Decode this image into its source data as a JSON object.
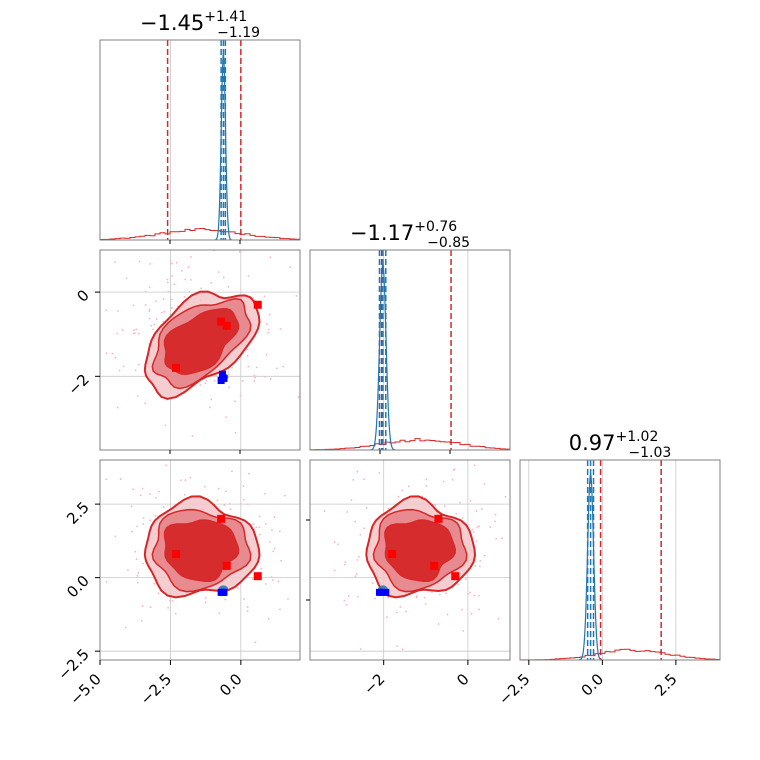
{
  "colors": {
    "primary": "#d62728",
    "secondary": "#1f77b4",
    "scatter_primary": "#f7b6c2",
    "marker_red": "#ff0000",
    "marker_blue": "#0000ff"
  },
  "chart_data": {
    "type": "scatter",
    "style": "corner-plot",
    "grid": true,
    "parameters": [
      {
        "index": 0,
        "range": [
          -5.0,
          2.1
        ],
        "ticks": [
          -5.0,
          -2.5,
          0.0
        ],
        "tick_labels": [
          "−5.0",
          "−2.5",
          "0.0"
        ]
      },
      {
        "index": 1,
        "range": [
          -3.75,
          1.0
        ],
        "ticks": [
          -2,
          0
        ],
        "tick_labels": [
          "−2",
          "0"
        ]
      },
      {
        "index": 2,
        "range": [
          -2.8,
          4.0
        ],
        "ticks": [
          -2.5,
          0.0,
          2.5
        ],
        "tick_labels": [
          "−2.5",
          "0.0",
          "2.5"
        ]
      }
    ],
    "titles": [
      {
        "value": "−1.45",
        "plus": "+1.41",
        "minus": "−1.19"
      },
      {
        "value": "−1.17",
        "plus": "+0.76",
        "minus": "−0.85"
      },
      {
        "value": "0.97",
        "plus": "+1.02",
        "minus": "−1.03"
      }
    ],
    "marginal_quantiles": {
      "primary": [
        [
          -2.6,
          0.0
        ],
        [
          -2.05,
          -0.4
        ],
        [
          -0.06,
          2.0
        ]
      ],
      "secondary": [
        [
          -0.7,
          -0.55
        ],
        [
          -2.1,
          -1.95
        ],
        [
          -0.5,
          -0.3
        ]
      ]
    },
    "marginal_centers": {
      "primary": [
        -1.45,
        -1.17,
        0.97
      ],
      "secondary": [
        -0.62,
        -2.02,
        -0.4
      ]
    },
    "marginal_secondary_peak": [
      -0.62,
      -2.02,
      -0.4
    ],
    "red_markers": [
      [
        -0.7,
        -0.7,
        2.0
      ],
      [
        -2.3,
        -1.8,
        0.8
      ],
      [
        -0.5,
        -0.8,
        0.4
      ],
      [
        0.6,
        -0.3,
        0.05
      ]
    ],
    "blue_markers": [
      [
        -0.65,
        -1.95,
        -0.5
      ],
      [
        -0.6,
        -2.05,
        -0.5
      ],
      [
        -0.7,
        -2.1,
        -0.5
      ]
    ]
  }
}
